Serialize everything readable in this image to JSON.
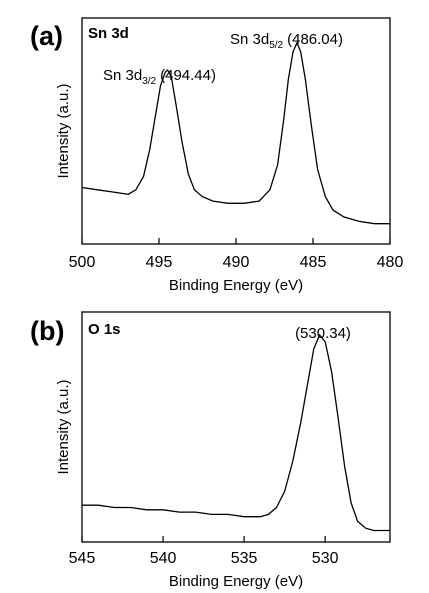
{
  "chart_data": [
    {
      "type": "line",
      "panel_label": "(a)",
      "title": "Sn 3d",
      "xlabel": "Binding Energy (eV)",
      "ylabel": "Intensity (a.u.)",
      "xlim": [
        500,
        480
      ],
      "x_reversed": true,
      "xticks": [
        "500",
        "495",
        "490",
        "485",
        "480"
      ],
      "ylim": [
        0,
        1
      ],
      "grid": false,
      "series": [
        {
          "x": [
            500,
            499,
            498,
            497,
            496.5,
            496,
            495.6,
            495.2,
            494.9,
            494.6,
            494.44,
            494.2,
            493.9,
            493.5,
            493.1,
            492.7,
            492.2,
            491.5,
            490.5,
            489.5,
            488.5,
            487.8,
            487.3,
            486.9,
            486.6,
            486.3,
            486.04,
            485.8,
            485.5,
            485.1,
            484.7,
            484.2,
            483.7,
            483,
            482,
            481,
            480
          ],
          "y": [
            0.25,
            0.24,
            0.23,
            0.22,
            0.24,
            0.3,
            0.42,
            0.58,
            0.7,
            0.76,
            0.77,
            0.74,
            0.62,
            0.45,
            0.31,
            0.24,
            0.21,
            0.19,
            0.18,
            0.18,
            0.19,
            0.24,
            0.35,
            0.55,
            0.73,
            0.85,
            0.89,
            0.85,
            0.73,
            0.52,
            0.33,
            0.21,
            0.15,
            0.12,
            0.1,
            0.09,
            0.09
          ]
        }
      ],
      "annotations": [
        {
          "text": "Sn 3d",
          "sub": "3/2",
          "value": "(494.44)",
          "x": 494.44
        },
        {
          "text": "Sn 3d",
          "sub": "5/2",
          "value": "(486.04)",
          "x": 486.04
        }
      ]
    },
    {
      "type": "line",
      "panel_label": "(b)",
      "title": "O 1s",
      "xlabel": "Binding Energy (eV)",
      "ylabel": "Intensity (a.u.)",
      "xlim": [
        545,
        526
      ],
      "x_reversed": true,
      "xticks": [
        "545",
        "540",
        "535",
        "530"
      ],
      "ylim": [
        0,
        1
      ],
      "grid": false,
      "series": [
        {
          "x": [
            545,
            544,
            543,
            542,
            541,
            540,
            539,
            538,
            537,
            536,
            535,
            534,
            533.5,
            533,
            532.5,
            532,
            531.5,
            531,
            530.7,
            530.34,
            530,
            529.6,
            529.2,
            528.8,
            528.4,
            528,
            527.5,
            527,
            526
          ],
          "y": [
            0.16,
            0.16,
            0.15,
            0.15,
            0.14,
            0.14,
            0.13,
            0.13,
            0.12,
            0.12,
            0.11,
            0.11,
            0.12,
            0.15,
            0.22,
            0.35,
            0.52,
            0.72,
            0.84,
            0.9,
            0.87,
            0.74,
            0.54,
            0.33,
            0.17,
            0.09,
            0.06,
            0.05,
            0.05
          ]
        }
      ],
      "annotations": [
        {
          "text": "",
          "sub": "",
          "value": "(530.34)",
          "x": 530.34
        }
      ]
    }
  ]
}
